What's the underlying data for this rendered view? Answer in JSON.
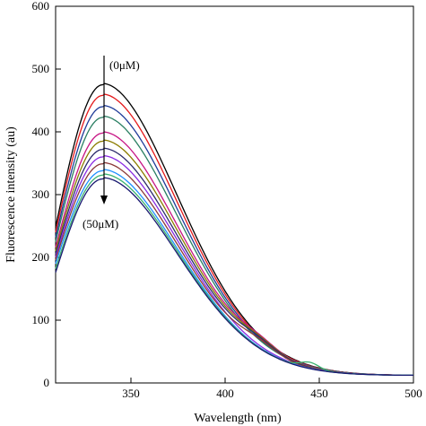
{
  "chart_data": {
    "type": "line",
    "xlabel": "Wavelength (nm)",
    "ylabel": "Fluorescence intensity (au)",
    "xlim": [
      310,
      500
    ],
    "ylim": [
      0,
      600
    ],
    "xticks": [
      350,
      400,
      450,
      500
    ],
    "yticks": [
      0,
      100,
      200,
      300,
      400,
      500,
      600
    ],
    "grid": false,
    "legend": "none",
    "annotations": {
      "start_label": "(0μM)",
      "end_label": "(50μM)"
    },
    "peak_wavelength": 335,
    "series": [
      {
        "color": "#000000",
        "values_at_peak": 475,
        "start": 248,
        "shoulder": null
      },
      {
        "color": "#e41a1c",
        "values_at_peak": 458,
        "start": 240,
        "shoulder": null
      },
      {
        "color": "#1f3c99",
        "values_at_peak": 440,
        "start": 232,
        "shoulder": null
      },
      {
        "color": "#2a7f62",
        "values_at_peak": 423,
        "start": 225,
        "shoulder": null
      },
      {
        "color": "#c71585",
        "values_at_peak": 398,
        "start": 216,
        "shoulder": 418
      },
      {
        "color": "#8b7d00",
        "values_at_peak": 385,
        "start": 210,
        "shoulder": 418
      },
      {
        "color": "#2b2b6b",
        "values_at_peak": 372,
        "start": 205,
        "shoulder": 418
      },
      {
        "color": "#8a2be2",
        "values_at_peak": 360,
        "start": 200,
        "shoulder": null
      },
      {
        "color": "#8b3a3a",
        "values_at_peak": 349,
        "start": 196,
        "shoulder": 418
      },
      {
        "color": "#1e90ff",
        "values_at_peak": 338,
        "start": 190,
        "shoulder": null
      },
      {
        "color": "#3cb371",
        "values_at_peak": 331,
        "start": 182,
        "shoulder": 445
      },
      {
        "color": "#191970",
        "values_at_peak": 325,
        "start": 176,
        "shoulder": null
      }
    ]
  }
}
